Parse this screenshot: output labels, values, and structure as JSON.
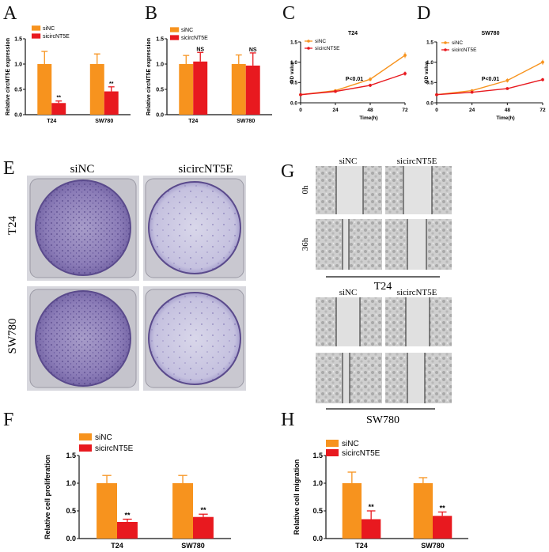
{
  "figure": {
    "panel_labels": [
      "A",
      "B",
      "C",
      "D",
      "E",
      "F",
      "G",
      "H"
    ],
    "E": {
      "columns": [
        "siNC",
        "sicircNT5E"
      ],
      "rows": [
        "T24",
        "SW780"
      ]
    },
    "G": {
      "columns": [
        "siNC",
        "sicircNT5E"
      ],
      "time_points": [
        "0h",
        "36h"
      ],
      "groups": [
        "T24",
        "SW780"
      ]
    }
  },
  "colors": {
    "siNC": "#f7931e",
    "sicircNT5E": "#e8191f",
    "axis": "#111111"
  },
  "chart_data": [
    {
      "id": "A",
      "type": "bar",
      "ylabel": "Relative circNT5E expression",
      "categories": [
        "T24",
        "SW780"
      ],
      "ylim": [
        0,
        1.5
      ],
      "yticks": [
        0,
        0.5,
        1,
        1.5
      ],
      "tick_labels": [
        "0.0",
        "0.5",
        "1.0",
        "1.5"
      ],
      "legend": [
        "siNC",
        "sicircNT5E"
      ],
      "series": [
        {
          "name": "siNC",
          "values": [
            1.0,
            1.0
          ],
          "errors": [
            0.25,
            0.2
          ]
        },
        {
          "name": "sicircNT5E",
          "values": [
            0.23,
            0.46
          ],
          "errors": [
            0.04,
            0.09
          ]
        }
      ],
      "annotations": [
        "**",
        "**"
      ]
    },
    {
      "id": "B",
      "type": "bar",
      "ylabel": "Relative circNT5E expression",
      "categories": [
        "T24",
        "SW780"
      ],
      "ylim": [
        0,
        1.5
      ],
      "yticks": [
        0,
        0.5,
        1,
        1.5
      ],
      "tick_labels": [
        "0.0",
        "0.5",
        "1.0",
        "1.5"
      ],
      "legend": [
        "siNC",
        "sicircNT5E"
      ],
      "series": [
        {
          "name": "siNC",
          "values": [
            1.0,
            1.0
          ],
          "errors": [
            0.17,
            0.18
          ]
        },
        {
          "name": "sicircNT5E",
          "values": [
            1.05,
            0.97
          ],
          "errors": [
            0.18,
            0.25
          ]
        }
      ],
      "annotations": [
        "NS",
        "NS"
      ]
    },
    {
      "id": "C",
      "type": "line",
      "title": "T24",
      "xlabel": "Time(h)",
      "ylabel": "OD value",
      "x": [
        0,
        24,
        48,
        72
      ],
      "xlim": [
        0,
        72
      ],
      "ylim": [
        0,
        1.5
      ],
      "yticks": [
        0,
        0.5,
        1,
        1.5
      ],
      "tick_labels": [
        "0.0",
        "0.5",
        "1.0",
        "1.5"
      ],
      "legend": [
        "siNC",
        "sicircNT5E"
      ],
      "series": [
        {
          "name": "siNC",
          "values": [
            0.2,
            0.3,
            0.58,
            1.17
          ],
          "errors": [
            0.02,
            0.03,
            0.05,
            0.07
          ]
        },
        {
          "name": "sicircNT5E",
          "values": [
            0.2,
            0.28,
            0.43,
            0.72
          ],
          "errors": [
            0.02,
            0.02,
            0.04,
            0.05
          ]
        }
      ],
      "annotation": "P<0.01"
    },
    {
      "id": "D",
      "type": "line",
      "title": "SW780",
      "xlabel": "Time(h)",
      "ylabel": "OD value",
      "x": [
        0,
        24,
        48,
        72
      ],
      "xlim": [
        0,
        72
      ],
      "ylim": [
        0,
        1.5
      ],
      "yticks": [
        0,
        0.5,
        1,
        1.5
      ],
      "tick_labels": [
        "0.0",
        "0.5",
        "1.0",
        "1.5"
      ],
      "legend": [
        "siNC",
        "sicircNT5E"
      ],
      "series": [
        {
          "name": "siNC",
          "values": [
            0.2,
            0.3,
            0.55,
            1.0
          ],
          "errors": [
            0.02,
            0.03,
            0.05,
            0.06
          ]
        },
        {
          "name": "sicircNT5E",
          "values": [
            0.2,
            0.26,
            0.35,
            0.57
          ],
          "errors": [
            0.02,
            0.02,
            0.03,
            0.04
          ]
        }
      ],
      "annotation": "P<0.01"
    },
    {
      "id": "F",
      "type": "bar",
      "ylabel": "Relative cell proliferation",
      "categories": [
        "T24",
        "SW780"
      ],
      "ylim": [
        0,
        1.5
      ],
      "yticks": [
        0,
        0.5,
        1,
        1.5
      ],
      "tick_labels": [
        "0.0",
        "0.5",
        "1.0",
        "1.5"
      ],
      "legend": [
        "siNC",
        "sicircNT5E"
      ],
      "series": [
        {
          "name": "siNC",
          "values": [
            1.0,
            1.0
          ],
          "errors": [
            0.14,
            0.14
          ]
        },
        {
          "name": "sicircNT5E",
          "values": [
            0.3,
            0.39
          ],
          "errors": [
            0.05,
            0.05
          ]
        }
      ],
      "annotations": [
        "**",
        "**"
      ]
    },
    {
      "id": "H",
      "type": "bar",
      "ylabel": "Relative cell migration",
      "categories": [
        "T24",
        "SW780"
      ],
      "ylim": [
        0,
        1.5
      ],
      "yticks": [
        0,
        0.5,
        1,
        1.5
      ],
      "tick_labels": [
        "0.0",
        "0.5",
        "1.0",
        "1.5"
      ],
      "legend": [
        "siNC",
        "sicircNT5E"
      ],
      "series": [
        {
          "name": "siNC",
          "values": [
            1.0,
            1.0
          ],
          "errors": [
            0.2,
            0.1
          ]
        },
        {
          "name": "sicircNT5E",
          "values": [
            0.35,
            0.41
          ],
          "errors": [
            0.15,
            0.07
          ]
        }
      ],
      "annotations": [
        "**",
        "**"
      ]
    }
  ]
}
